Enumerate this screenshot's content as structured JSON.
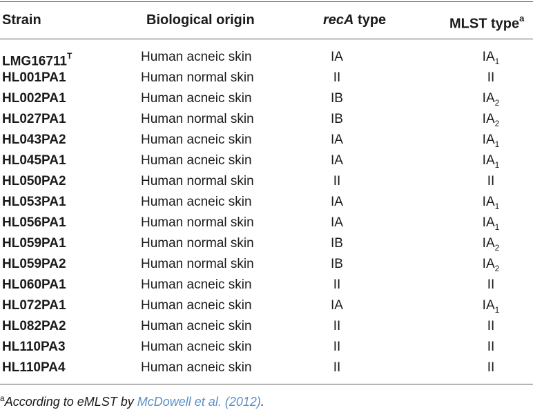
{
  "header": {
    "strain": "Strain",
    "origin": "Biological origin",
    "reca_italic": "recA",
    "reca_rest": " type",
    "mlst": "MLST type",
    "mlst_sup": "a"
  },
  "rows": [
    {
      "strain": "LMG16711",
      "sup": "T",
      "origin": "Human acneic skin",
      "reca": "IA",
      "mlst": "IA",
      "mlst_sub": "1"
    },
    {
      "strain": "HL001PA1",
      "origin": "Human normal skin",
      "reca": "II",
      "mlst": "II",
      "mlst_sub": ""
    },
    {
      "strain": "HL002PA1",
      "origin": "Human acneic skin",
      "reca": "IB",
      "mlst": "IA",
      "mlst_sub": "2"
    },
    {
      "strain": "HL027PA1",
      "origin": "Human normal skin",
      "reca": "IB",
      "mlst": "IA",
      "mlst_sub": "2"
    },
    {
      "strain": "HL043PA2",
      "origin": "Human acneic skin",
      "reca": "IA",
      "mlst": "IA",
      "mlst_sub": "1"
    },
    {
      "strain": "HL045PA1",
      "origin": "Human acneic skin",
      "reca": "IA",
      "mlst": "IA",
      "mlst_sub": "1"
    },
    {
      "strain": "HL050PA2",
      "origin": "Human normal skin",
      "reca": "II",
      "mlst": "II",
      "mlst_sub": ""
    },
    {
      "strain": "HL053PA1",
      "origin": "Human acneic skin",
      "reca": "IA",
      "mlst": "IA",
      "mlst_sub": "1"
    },
    {
      "strain": "HL056PA1",
      "origin": "Human normal skin",
      "reca": "IA",
      "mlst": "IA",
      "mlst_sub": "1"
    },
    {
      "strain": "HL059PA1",
      "origin": "Human normal skin",
      "reca": "IB",
      "mlst": "IA",
      "mlst_sub": "2"
    },
    {
      "strain": "HL059PA2",
      "origin": "Human normal skin",
      "reca": "IB",
      "mlst": "IA",
      "mlst_sub": "2"
    },
    {
      "strain": "HL060PA1",
      "origin": "Human acneic skin",
      "reca": "II",
      "mlst": "II",
      "mlst_sub": ""
    },
    {
      "strain": "HL072PA1",
      "origin": "Human acneic skin",
      "reca": "IA",
      "mlst": "IA",
      "mlst_sub": "1"
    },
    {
      "strain": "HL082PA2",
      "origin": "Human acneic skin",
      "reca": "II",
      "mlst": "II",
      "mlst_sub": ""
    },
    {
      "strain": "HL110PA3",
      "origin": "Human acneic skin",
      "reca": "II",
      "mlst": "II",
      "mlst_sub": ""
    },
    {
      "strain": "HL110PA4",
      "origin": "Human acneic skin",
      "reca": "II",
      "mlst": "II",
      "mlst_sub": ""
    }
  ],
  "footnote": {
    "sup": "a",
    "text": "According to eMLST by ",
    "ref": "McDowell et al. (2012)",
    "end": "."
  }
}
